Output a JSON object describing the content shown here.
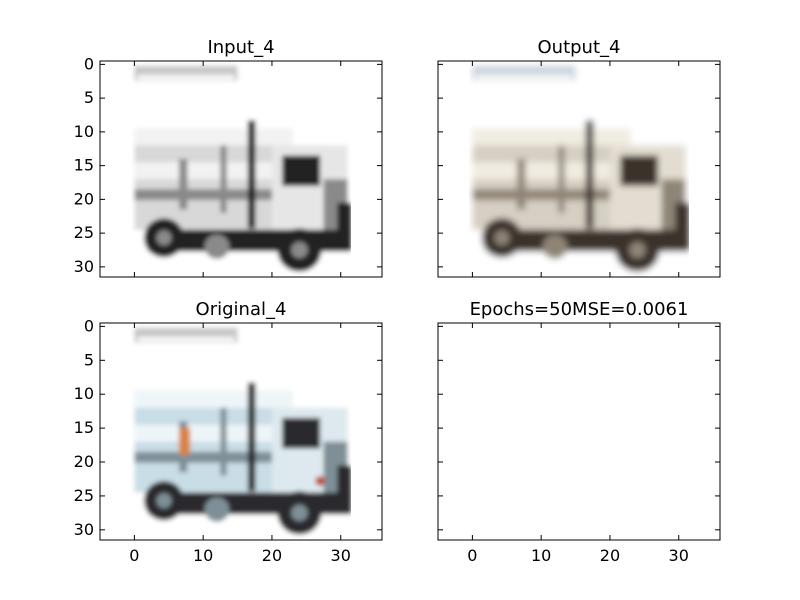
{
  "figure": {
    "background": "#ffffff",
    "axis_color": "#000000"
  },
  "chart_data": [
    {
      "type": "image",
      "title": "Input_4",
      "xlim": [
        -5,
        36
      ],
      "ylim": [
        31.5,
        -0.5
      ],
      "xticks": [],
      "yticks": [
        0,
        5,
        10,
        15,
        20,
        25,
        30
      ],
      "image": "grayscale truck picture (32x32 input)",
      "palette": {
        "body": "#d8d8d8",
        "light": "#f2f2f2",
        "dark": "#222222",
        "mid": "#8a8a8a",
        "text": "#c8c8c8",
        "cab": "#e6e6e6"
      }
    },
    {
      "type": "image",
      "title": "Output_4",
      "xlim": [
        -5,
        36
      ],
      "ylim": [
        31.5,
        -0.5
      ],
      "xticks": [],
      "yticks": [],
      "image": "reconstructed truck picture (sepia tint)",
      "palette": {
        "body": "#d6cfc3",
        "light": "#f1ece2",
        "dark": "#3a332b",
        "mid": "#8f8577",
        "text": "#c9d3dc",
        "cab": "#e3ddd1"
      }
    },
    {
      "type": "image",
      "title": "Original_4",
      "xlim": [
        -5,
        36
      ],
      "ylim": [
        31.5,
        -0.5
      ],
      "xticks": [
        0,
        10,
        20,
        30
      ],
      "yticks": [
        0,
        5,
        10,
        15,
        20,
        25,
        30
      ],
      "image": "original color truck picture",
      "palette": {
        "body": "#c9dde6",
        "light": "#eef5f8",
        "dark": "#2a2c2e",
        "mid": "#7f8f97",
        "text": "#c8c8c8",
        "cab": "#dde9ee",
        "accent": "#d9823f"
      }
    },
    {
      "type": "empty",
      "title": "Epochs=50MSE=0.0061",
      "xlim": [
        -5,
        36
      ],
      "ylim": [
        31.5,
        -0.5
      ],
      "xticks": [
        0,
        10,
        20,
        30
      ],
      "yticks": []
    }
  ]
}
